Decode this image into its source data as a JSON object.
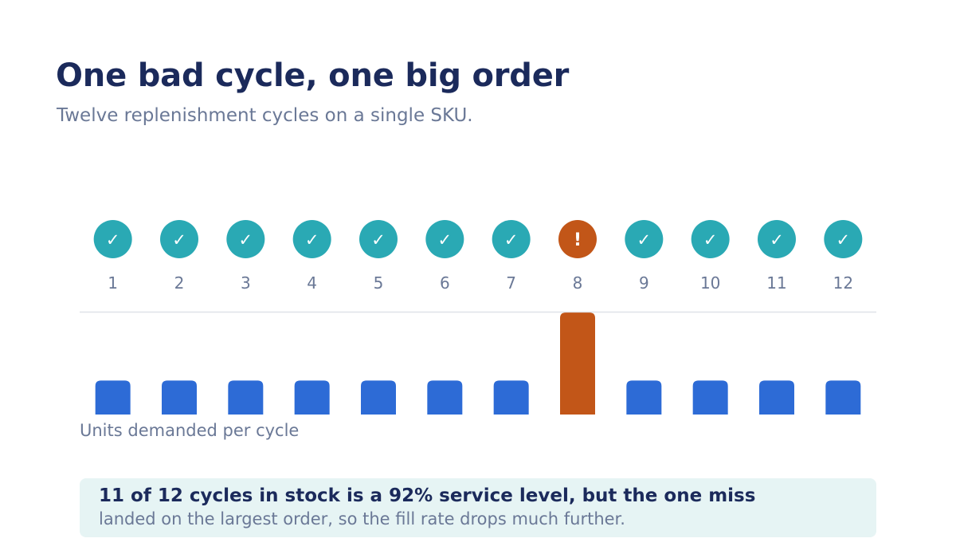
{
  "title": "One bad cycle, one big order",
  "subtitle": "Twelve replenishment cycles on a single SKU.",
  "chart_data": {
    "type": "bar",
    "categories": [
      "1",
      "2",
      "3",
      "4",
      "5",
      "6",
      "7",
      "8",
      "9",
      "10",
      "11",
      "12"
    ],
    "status": [
      "in-stock",
      "in-stock",
      "in-stock",
      "in-stock",
      "in-stock",
      "in-stock",
      "in-stock",
      "stockout",
      "in-stock",
      "in-stock",
      "in-stock",
      "in-stock"
    ],
    "status_icons": {
      "in-stock": "check-icon",
      "stockout": "exclamation-icon"
    },
    "status_symbols": {
      "in-stock": "✓",
      "stockout": "!"
    },
    "values": [
      1,
      1,
      1,
      1,
      1,
      1,
      1,
      3,
      1,
      1,
      1,
      1
    ],
    "ylabel": "Units demanded per cycle",
    "ylim": [
      0,
      3.05
    ],
    "grid": false
  },
  "colors": {
    "in_stock_circle": "#2aa9b4",
    "stockout_circle": "#c25618",
    "bar_normal": "#2d6bd6",
    "bar_highlight": "#c25618",
    "tick_text": "#6a7896",
    "baseline": "#dfe2e8"
  },
  "note": {
    "lead": "11 of 12 cycles in stock is a 92% service level, but the one miss",
    "rest": "landed on the largest order, so the fill rate drops much further."
  }
}
